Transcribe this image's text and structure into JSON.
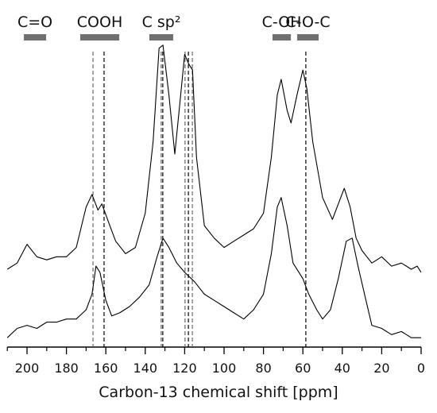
{
  "chart_data": {
    "type": "line",
    "xlabel": "Carbon-13 chemical shift [ppm]",
    "xlim": [
      210,
      0
    ],
    "xticks": [
      200,
      180,
      160,
      140,
      120,
      100,
      80,
      60,
      40,
      20,
      0
    ],
    "minor_xticks": [
      210,
      190,
      170,
      150,
      130,
      110,
      90,
      70,
      50,
      30,
      10
    ],
    "ylim": [
      0,
      100
    ],
    "series": [
      {
        "color": "#000000",
        "x": [
          210,
          205,
          200,
          195,
          190,
          185,
          180,
          175,
          170,
          167,
          164,
          162,
          158,
          155,
          150,
          145,
          140,
          136,
          133,
          131,
          128,
          125,
          122,
          120,
          118,
          116,
          114,
          110,
          105,
          100,
          95,
          90,
          85,
          80,
          76,
          73,
          71,
          68,
          66,
          63,
          60,
          58,
          55,
          50,
          45,
          42,
          39,
          36,
          33,
          30,
          25,
          20,
          15,
          10,
          5,
          2,
          0
        ],
        "values": [
          25,
          27,
          33,
          29,
          28,
          29,
          29,
          32,
          45,
          49,
          44,
          46,
          39,
          34,
          30,
          32,
          43,
          66,
          96,
          97,
          81,
          62,
          81,
          94,
          91,
          89,
          61,
          39,
          35,
          32,
          34,
          36,
          38,
          43,
          61,
          81,
          86,
          76,
          72,
          81,
          89,
          83,
          66,
          48,
          41,
          46,
          51,
          45,
          35,
          31,
          27,
          29,
          26,
          27,
          25,
          26,
          24
        ]
      },
      {
        "color": "#000000",
        "x": [
          210,
          205,
          200,
          195,
          190,
          185,
          180,
          175,
          170,
          167,
          165,
          163,
          160,
          157,
          153,
          148,
          143,
          138,
          134,
          131,
          128,
          124,
          120,
          115,
          110,
          105,
          100,
          95,
          90,
          85,
          80,
          76,
          73,
          71,
          68,
          65,
          62,
          60,
          57,
          53,
          50,
          46,
          42,
          38,
          35,
          32,
          28,
          25,
          20,
          15,
          10,
          5,
          0
        ],
        "values": [
          3,
          6,
          7,
          6,
          8,
          8,
          9,
          9,
          12,
          17,
          26,
          24,
          15,
          10,
          11,
          13,
          16,
          20,
          29,
          35,
          32,
          27,
          24,
          21,
          17,
          15,
          13,
          11,
          9,
          12,
          17,
          30,
          45,
          48,
          39,
          27,
          24,
          22,
          17,
          12,
          9,
          12,
          22,
          34,
          35,
          26,
          15,
          7,
          6,
          4,
          5,
          3,
          3
        ]
      }
    ],
    "regions": [
      {
        "label": "C=O",
        "range": [
          201.6,
          190.3
        ]
      },
      {
        "label": "COOH",
        "range": [
          173,
          153.2
        ]
      },
      {
        "label": "C sp²",
        "range": [
          137.9,
          125.8
        ]
      },
      {
        "label": "C-OH",
        "range": [
          75.4,
          66.1
        ]
      },
      {
        "label": "C-O-C",
        "range": [
          62.9,
          52
        ]
      }
    ],
    "region_color": "#707070",
    "vlines": [
      {
        "x": 166.5,
        "color": "#666666"
      },
      {
        "x": 160.9,
        "color": "#000000"
      },
      {
        "x": 131.9,
        "color": "#666666"
      },
      {
        "x": 131.1,
        "color": "#000000"
      },
      {
        "x": 119.8,
        "color": "#666666"
      },
      {
        "x": 118.1,
        "color": "#000000"
      },
      {
        "x": 116.1,
        "color": "#666666"
      },
      {
        "x": 58.5,
        "color": "#000000"
      }
    ]
  }
}
